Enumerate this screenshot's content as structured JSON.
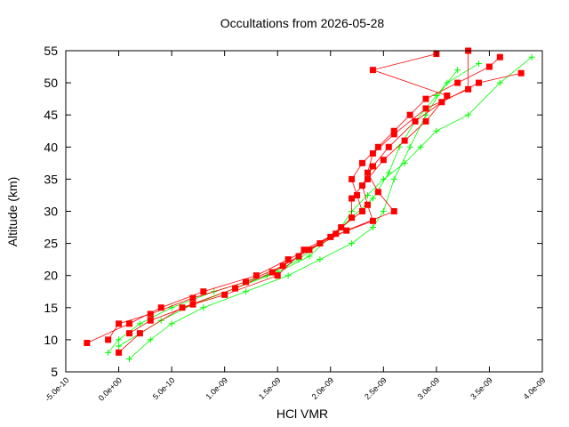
{
  "chart_data": {
    "type": "scatter",
    "title": "Occultations from 2026-05-28",
    "xlabel": "HCl VMR",
    "ylabel": "Altitude (km)",
    "xlim": [
      -5e-10,
      4e-09
    ],
    "ylim": [
      5,
      55
    ],
    "xticks": [
      {
        "value": -5e-10,
        "label": "-5.0e-10"
      },
      {
        "value": 0,
        "label": "0.0e+00"
      },
      {
        "value": 5e-10,
        "label": "5.0e-10"
      },
      {
        "value": 1e-09,
        "label": "1.0e-09"
      },
      {
        "value": 1.5e-09,
        "label": "1.5e-09"
      },
      {
        "value": 2e-09,
        "label": "2.0e-09"
      },
      {
        "value": 2.5e-09,
        "label": "2.5e-09"
      },
      {
        "value": 3e-09,
        "label": "3.0e-09"
      },
      {
        "value": 3.5e-09,
        "label": "3.5e-09"
      },
      {
        "value": 4e-09,
        "label": "4.0e-09"
      }
    ],
    "yticks": [
      5,
      10,
      15,
      20,
      25,
      30,
      35,
      40,
      45,
      50,
      55
    ],
    "series": [
      {
        "color": "#00ff00",
        "marker": "plus",
        "x": [
          -1e-10,
          0,
          2e-10,
          5e-10,
          9e-10,
          1.4e-09,
          1.7e-09,
          1.9e-09,
          2.1e-09,
          2.2e-09,
          2.35e-09,
          2.5e-09,
          2.7e-09,
          2.85e-09,
          3e-09,
          3.3e-09,
          3.6e-09,
          3.9e-09
        ],
        "values": [
          8,
          10,
          12.5,
          15,
          17.5,
          20,
          22.5,
          25,
          27.5,
          30,
          32.5,
          35,
          37.5,
          40,
          42.5,
          45,
          50,
          54
        ]
      },
      {
        "color": "#00ff00",
        "marker": "plus",
        "x": [
          1e-10,
          3e-10,
          5e-10,
          8e-10,
          1.2e-09,
          1.6e-09,
          1.9e-09,
          2.2e-09,
          2.4e-09,
          2.5e-09,
          2.6e-09,
          2.75e-09,
          2.9e-09,
          3.1e-09,
          3.4e-09
        ],
        "values": [
          7,
          10,
          12.5,
          15,
          17.5,
          20,
          22.5,
          25,
          27.5,
          30,
          35,
          40,
          45,
          50,
          53
        ]
      },
      {
        "color": "#00ff00",
        "marker": "plus",
        "x": [
          0,
          2e-10,
          4e-10,
          7e-10,
          1.1e-09,
          1.5e-09,
          1.8e-09,
          2e-09,
          2.2e-09,
          2.4e-09,
          2.55e-09,
          2.65e-09,
          2.8e-09,
          3e-09,
          3.2e-09
        ],
        "values": [
          9,
          11,
          13,
          15.5,
          18,
          20.5,
          23,
          26,
          29,
          32,
          36,
          40,
          44,
          48,
          52
        ]
      },
      {
        "color": "#ff0000",
        "marker": "square",
        "x": [
          -3e-10,
          1e-10,
          4e-10,
          8e-10,
          1.3e-09,
          1.6e-09,
          1.9e-09,
          2.1e-09,
          2.3e-09,
          2.25e-09,
          2.2e-09,
          2.3e-09,
          2.45e-09,
          2.6e-09,
          2.75e-09,
          2.9e-09,
          3.2e-09,
          3.5e-09,
          3.6e-09
        ],
        "values": [
          9.5,
          12.5,
          15,
          17.5,
          20,
          22.5,
          25,
          27.5,
          30,
          32.5,
          35,
          37.5,
          40,
          42.5,
          45,
          47.5,
          50,
          52.5,
          54
        ]
      },
      {
        "color": "#ff0000",
        "marker": "square",
        "x": [
          0,
          2e-10,
          6e-10,
          1.1e-09,
          1.45e-09,
          1.7e-09,
          2e-09,
          2.4e-09,
          2.35e-09,
          2.3e-09,
          2.4e-09,
          2.55e-09,
          2.8e-09,
          3.05e-09,
          3.4e-09,
          3.8e-09
        ],
        "values": [
          8,
          11,
          15,
          18,
          20.5,
          23,
          26,
          28.5,
          31,
          34,
          37,
          40,
          44,
          47,
          50,
          51.5
        ]
      },
      {
        "color": "#ff0000",
        "marker": "square",
        "x": [
          -1e-10,
          0,
          3e-10,
          7e-10,
          1.2e-09,
          1.55e-09,
          1.8e-09,
          2.15e-09,
          2.6e-09,
          2.45e-09,
          2.35e-09,
          2.4e-09,
          2.6e-09,
          2.9e-09,
          3.3e-09,
          3.3e-09
        ],
        "values": [
          10,
          12.5,
          14,
          16.5,
          19,
          21.5,
          24,
          27,
          30,
          33,
          36,
          39,
          42,
          46,
          49,
          55
        ]
      },
      {
        "color": "#ff0000",
        "marker": "square",
        "x": [
          1e-10,
          3e-10,
          7e-10,
          1e-09,
          1.5e-09,
          1.75e-09,
          2.05e-09,
          2.2e-09,
          2.2e-09,
          2.35e-09,
          2.5e-09,
          2.7e-09,
          2.9e-09,
          3.1e-09,
          2.4e-09,
          3e-09
        ],
        "values": [
          11,
          13,
          15.5,
          17,
          20,
          24,
          26.5,
          29,
          32,
          35,
          38,
          41,
          44,
          48,
          52,
          54.5
        ]
      }
    ]
  }
}
